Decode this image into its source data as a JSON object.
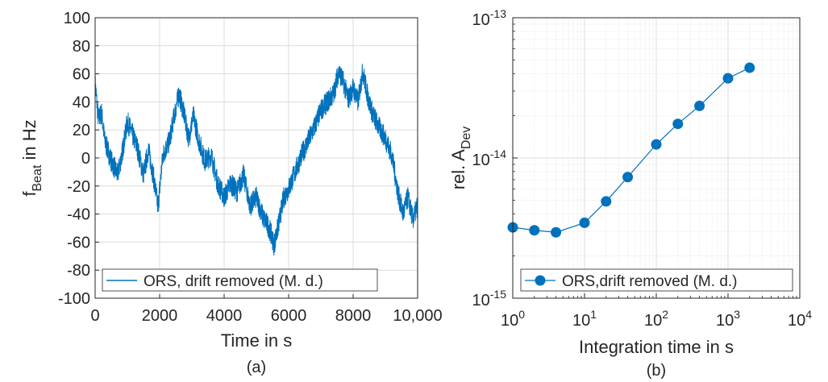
{
  "colors": {
    "series": "#0072BD",
    "axis": "#262626",
    "grid": "#dcdcdc",
    "minor_grid": "#ececec"
  },
  "chart_data": [
    {
      "type": "line",
      "panel_label": "(a)",
      "xlabel": "Time in s",
      "ylabel_main": "f",
      "ylabel_sub": "Beat",
      "ylabel_tail": " in Hz",
      "xlim": [
        0,
        10000
      ],
      "ylim": [
        -100,
        100
      ],
      "xticks": [
        0,
        2000,
        4000,
        6000,
        8000,
        10000
      ],
      "xtick_labels": [
        "0",
        "2000",
        "4000",
        "6000",
        "8000",
        "10,000"
      ],
      "yticks": [
        -100,
        -80,
        -60,
        -40,
        -20,
        0,
        20,
        40,
        60,
        80,
        100
      ],
      "ytick_labels": [
        "-100",
        "-80",
        "-60",
        "-40",
        "-20",
        "0",
        "20",
        "40",
        "60",
        "80",
        "100"
      ],
      "grid": true,
      "legend_position": "bottom-left",
      "series": [
        {
          "name": "ORS, drift removed (M. d.)",
          "x": [
            0,
            100,
            200,
            300,
            500,
            700,
            850,
            1000,
            1150,
            1300,
            1500,
            1650,
            1800,
            1950,
            2100,
            2300,
            2450,
            2600,
            2750,
            2900,
            3050,
            3200,
            3400,
            3600,
            3800,
            4000,
            4200,
            4400,
            4600,
            4800,
            5000,
            5200,
            5400,
            5550,
            5700,
            5850,
            6000,
            6200,
            6400,
            6600,
            6800,
            7000,
            7200,
            7400,
            7550,
            7700,
            7850,
            8000,
            8150,
            8300,
            8450,
            8600,
            8800,
            9000,
            9200,
            9400,
            9550,
            9700,
            9850,
            10000
          ],
          "y": [
            53,
            28,
            32,
            12,
            -2,
            -12,
            5,
            26,
            17,
            8,
            -12,
            6,
            -12,
            -35,
            2,
            12,
            30,
            46,
            32,
            14,
            30,
            14,
            -2,
            2,
            -18,
            -28,
            -18,
            -24,
            -12,
            -34,
            -28,
            -42,
            -50,
            -62,
            -46,
            -28,
            -22,
            -10,
            2,
            12,
            22,
            34,
            40,
            46,
            62,
            54,
            42,
            50,
            40,
            62,
            44,
            32,
            22,
            14,
            2,
            -26,
            -40,
            -28,
            -44,
            -34
          ]
        }
      ]
    },
    {
      "type": "line",
      "panel_label": "(b)",
      "xlabel": "Integration time in s",
      "ylabel_main": "rel. A",
      "ylabel_sub": "Dev",
      "ylabel_tail": "",
      "xscale": "log",
      "yscale": "log",
      "xlim": [
        1,
        10000
      ],
      "ylim": [
        1e-15,
        1e-13
      ],
      "xtick_bases": [
        "10",
        "10",
        "10",
        "10",
        "10"
      ],
      "xtick_exps": [
        "0",
        "1",
        "2",
        "3",
        "4"
      ],
      "ytick_bases": [
        "10",
        "10",
        "10"
      ],
      "ytick_exps": [
        "-15",
        "-14",
        "-13"
      ],
      "grid": true,
      "minor_grid": true,
      "legend_position": "bottom-right",
      "series": [
        {
          "name": "ORS,drift removed (M. d.)",
          "x": [
            1,
            2,
            4,
            10,
            20,
            40,
            100,
            200,
            400,
            1000,
            2000
          ],
          "y": [
            3.2e-15,
            3.05e-15,
            2.95e-15,
            3.45e-15,
            4.9e-15,
            7.3e-15,
            1.25e-14,
            1.75e-14,
            2.35e-14,
            3.7e-14,
            4.4e-14
          ]
        }
      ]
    }
  ]
}
